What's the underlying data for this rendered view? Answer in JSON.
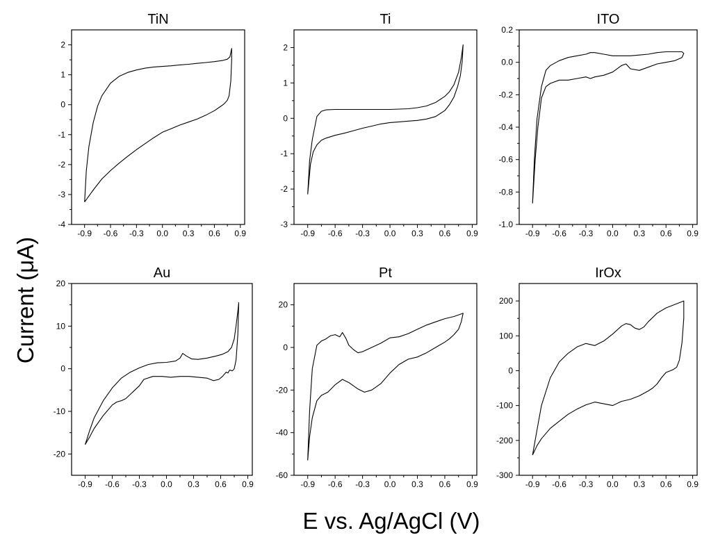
{
  "figure": {
    "ylabel": "Current (μA)",
    "xlabel": "E vs. Ag/AgCl (V)"
  },
  "chart_data": [
    {
      "type": "line",
      "title": "TiN",
      "xlim": [
        -1.05,
        0.95
      ],
      "ylim": [
        -4,
        2.5
      ],
      "xticks": [
        "-0.9",
        "-0.6",
        "-0.3",
        "0.0",
        "0.3",
        "0.6",
        "0.9"
      ],
      "yticks": [
        "-4",
        "-3",
        "-2",
        "-1",
        "0",
        "1",
        "2"
      ],
      "series": [
        {
          "x": [
            -0.9,
            -0.88,
            -0.85,
            -0.8,
            -0.75,
            -0.7,
            -0.6,
            -0.5,
            -0.4,
            -0.3,
            -0.2,
            -0.1,
            0.0,
            0.1,
            0.2,
            0.3,
            0.4,
            0.5,
            0.6,
            0.7,
            0.75,
            0.78,
            0.8,
            0.8,
            0.79,
            0.77,
            0.75,
            0.72,
            0.7,
            0.65,
            0.6,
            0.5,
            0.4,
            0.3,
            0.2,
            0.1,
            0.0,
            -0.1,
            -0.2,
            -0.3,
            -0.4,
            -0.5,
            -0.6,
            -0.7,
            -0.8,
            -0.85,
            -0.9
          ],
          "y": [
            -3.25,
            -2.2,
            -1.4,
            -0.6,
            -0.05,
            0.3,
            0.72,
            0.95,
            1.08,
            1.16,
            1.22,
            1.26,
            1.28,
            1.3,
            1.33,
            1.35,
            1.38,
            1.41,
            1.44,
            1.48,
            1.52,
            1.6,
            1.88,
            1.5,
            0.8,
            0.3,
            0.15,
            0.05,
            0.0,
            -0.1,
            -0.2,
            -0.35,
            -0.48,
            -0.58,
            -0.68,
            -0.8,
            -0.92,
            -1.1,
            -1.3,
            -1.5,
            -1.72,
            -1.95,
            -2.2,
            -2.48,
            -2.85,
            -3.05,
            -3.25
          ]
        }
      ]
    },
    {
      "type": "line",
      "title": "Ti",
      "xlim": [
        -1.05,
        0.95
      ],
      "ylim": [
        -3,
        2.5
      ],
      "xticks": [
        "-0.9",
        "-0.6",
        "-0.3",
        "0.0",
        "0.3",
        "0.6",
        "0.9"
      ],
      "yticks": [
        "-3",
        "-2",
        "-1",
        "0",
        "1",
        "2"
      ],
      "series": [
        {
          "x": [
            -0.9,
            -0.88,
            -0.85,
            -0.8,
            -0.75,
            -0.7,
            -0.6,
            -0.4,
            -0.2,
            0.0,
            0.2,
            0.3,
            0.4,
            0.5,
            0.6,
            0.65,
            0.7,
            0.75,
            0.78,
            0.8,
            0.79,
            0.77,
            0.74,
            0.7,
            0.65,
            0.6,
            0.5,
            0.4,
            0.3,
            0.2,
            0.1,
            0.0,
            -0.1,
            -0.2,
            -0.3,
            -0.4,
            -0.5,
            -0.6,
            -0.7,
            -0.75,
            -0.8,
            -0.84,
            -0.87,
            -0.9
          ],
          "y": [
            -2.15,
            -1.2,
            -0.6,
            0.05,
            0.2,
            0.24,
            0.25,
            0.25,
            0.25,
            0.25,
            0.27,
            0.3,
            0.35,
            0.45,
            0.62,
            0.75,
            0.95,
            1.3,
            1.7,
            2.08,
            1.6,
            1.2,
            0.9,
            0.6,
            0.38,
            0.22,
            0.05,
            -0.02,
            -0.06,
            -0.08,
            -0.1,
            -0.12,
            -0.16,
            -0.22,
            -0.28,
            -0.35,
            -0.42,
            -0.48,
            -0.56,
            -0.62,
            -0.75,
            -0.95,
            -1.3,
            -2.15
          ]
        }
      ]
    },
    {
      "type": "line",
      "title": "ITO",
      "xlim": [
        -1.05,
        0.95
      ],
      "ylim": [
        -1.0,
        0.2
      ],
      "xticks": [
        "-0.9",
        "-0.6",
        "-0.3",
        "0.0",
        "0.3",
        "0.6",
        "0.9"
      ],
      "yticks": [
        "-1.0",
        "-0.8",
        "-0.6",
        "-0.4",
        "-0.2",
        "0.0",
        "0.2"
      ],
      "series": [
        {
          "x": [
            -0.9,
            -0.88,
            -0.85,
            -0.8,
            -0.75,
            -0.7,
            -0.6,
            -0.5,
            -0.4,
            -0.3,
            -0.25,
            -0.2,
            -0.1,
            0.0,
            0.1,
            0.2,
            0.3,
            0.4,
            0.5,
            0.6,
            0.7,
            0.78,
            0.8,
            0.78,
            0.7,
            0.6,
            0.5,
            0.4,
            0.3,
            0.2,
            0.15,
            0.1,
            0.0,
            -0.1,
            -0.2,
            -0.25,
            -0.3,
            -0.4,
            -0.5,
            -0.6,
            -0.7,
            -0.75,
            -0.8,
            -0.84,
            -0.87,
            -0.9
          ],
          "y": [
            -0.87,
            -0.6,
            -0.35,
            -0.15,
            -0.05,
            -0.02,
            0.01,
            0.03,
            0.04,
            0.05,
            0.06,
            0.06,
            0.05,
            0.04,
            0.04,
            0.04,
            0.045,
            0.05,
            0.06,
            0.065,
            0.065,
            0.065,
            0.055,
            0.03,
            0.01,
            0.0,
            -0.01,
            -0.03,
            -0.05,
            -0.04,
            -0.01,
            -0.02,
            -0.06,
            -0.08,
            -0.09,
            -0.1,
            -0.09,
            -0.1,
            -0.11,
            -0.11,
            -0.13,
            -0.15,
            -0.22,
            -0.4,
            -0.6,
            -0.87
          ]
        }
      ]
    },
    {
      "type": "line",
      "title": "Au",
      "xlim": [
        -1.05,
        0.95
      ],
      "ylim": [
        -25,
        20
      ],
      "xticks": [
        "-0.9",
        "-0.6",
        "-0.3",
        "0.0",
        "0.3",
        "0.6",
        "0.9"
      ],
      "yticks": [
        "-20",
        "-10",
        "0",
        "10",
        "20"
      ],
      "series": [
        {
          "x": [
            -0.9,
            -0.85,
            -0.8,
            -0.7,
            -0.6,
            -0.5,
            -0.4,
            -0.3,
            -0.2,
            -0.1,
            0.0,
            0.1,
            0.15,
            0.18,
            0.22,
            0.28,
            0.35,
            0.45,
            0.55,
            0.62,
            0.68,
            0.72,
            0.75,
            0.77,
            0.79,
            0.8,
            0.79,
            0.77,
            0.75,
            0.73,
            0.7,
            0.68,
            0.66,
            0.62,
            0.58,
            0.52,
            0.45,
            0.35,
            0.25,
            0.15,
            0.05,
            -0.05,
            -0.15,
            -0.25,
            -0.3,
            -0.35,
            -0.4,
            -0.45,
            -0.5,
            -0.55,
            -0.6,
            -0.7,
            -0.8,
            -0.85,
            -0.9
          ],
          "y": [
            -17.8,
            -14.5,
            -11.5,
            -7.5,
            -4.5,
            -2.2,
            -0.8,
            0.2,
            1.0,
            1.4,
            1.5,
            1.8,
            2.5,
            3.6,
            3.0,
            2.3,
            2.2,
            2.5,
            3.0,
            3.4,
            4.0,
            5.0,
            7.0,
            10.0,
            13.5,
            15.5,
            8.0,
            2.0,
            0.0,
            -0.5,
            -0.3,
            -1.0,
            -0.8,
            -1.8,
            -2.5,
            -2.8,
            -2.2,
            -2.0,
            -1.8,
            -1.8,
            -2.0,
            -1.8,
            -1.8,
            -2.5,
            -4.0,
            -5.0,
            -6.0,
            -7.0,
            -7.5,
            -7.8,
            -8.5,
            -11.0,
            -14.0,
            -16.0,
            -17.8
          ]
        }
      ]
    },
    {
      "type": "line",
      "title": "Pt",
      "xlim": [
        -1.05,
        0.95
      ],
      "ylim": [
        -60,
        30
      ],
      "xticks": [
        "-0.9",
        "-0.6",
        "-0.3",
        "0.0",
        "0.3",
        "0.6",
        "0.9"
      ],
      "yticks": [
        "-60",
        "-40",
        "-20",
        "0",
        "20"
      ],
      "series": [
        {
          "x": [
            -0.9,
            -0.88,
            -0.85,
            -0.8,
            -0.75,
            -0.7,
            -0.65,
            -0.6,
            -0.55,
            -0.52,
            -0.48,
            -0.45,
            -0.4,
            -0.35,
            -0.3,
            -0.2,
            -0.1,
            0.0,
            0.1,
            0.2,
            0.3,
            0.4,
            0.5,
            0.6,
            0.7,
            0.8,
            0.78,
            0.75,
            0.7,
            0.65,
            0.6,
            0.5,
            0.4,
            0.3,
            0.2,
            0.1,
            0.0,
            -0.1,
            -0.2,
            -0.28,
            -0.35,
            -0.45,
            -0.52,
            -0.6,
            -0.68,
            -0.75,
            -0.8,
            -0.85,
            -0.88,
            -0.9
          ],
          "y": [
            -53.0,
            -30.0,
            -10.0,
            1.0,
            3.0,
            4.0,
            5.5,
            6.0,
            5.0,
            7.0,
            4.0,
            1.0,
            -1.0,
            -2.5,
            -2.0,
            0.0,
            2.0,
            4.5,
            5.0,
            6.5,
            8.5,
            10.5,
            12.0,
            13.5,
            14.5,
            16.0,
            12.0,
            8.5,
            6.0,
            4.0,
            2.5,
            0.0,
            -2.5,
            -4.5,
            -5.5,
            -8.0,
            -12.0,
            -17.0,
            -20.0,
            -21.0,
            -19.5,
            -16.5,
            -15.0,
            -17.5,
            -21.0,
            -22.5,
            -25.0,
            -33.0,
            -42.0,
            -53.0
          ]
        }
      ]
    },
    {
      "type": "line",
      "title": "IrOx",
      "xlim": [
        -1.05,
        0.95
      ],
      "ylim": [
        -300,
        250
      ],
      "xticks": [
        "-0.9",
        "-0.6",
        "-0.3",
        "0.0",
        "0.3",
        "0.6",
        "0.9"
      ],
      "yticks": [
        "-300",
        "-200",
        "-100",
        "0",
        "100",
        "200"
      ],
      "series": [
        {
          "x": [
            -0.9,
            -0.85,
            -0.8,
            -0.7,
            -0.6,
            -0.5,
            -0.4,
            -0.3,
            -0.2,
            -0.1,
            0.0,
            0.1,
            0.15,
            0.2,
            0.25,
            0.3,
            0.35,
            0.4,
            0.5,
            0.6,
            0.7,
            0.8,
            0.8,
            0.78,
            0.75,
            0.72,
            0.68,
            0.65,
            0.6,
            0.55,
            0.5,
            0.45,
            0.4,
            0.3,
            0.2,
            0.1,
            0.0,
            -0.1,
            -0.2,
            -0.3,
            -0.4,
            -0.5,
            -0.6,
            -0.7,
            -0.8,
            -0.85,
            -0.9
          ],
          "y": [
            -242,
            -170,
            -100,
            -20,
            25,
            50,
            68,
            78,
            72,
            85,
            105,
            128,
            135,
            132,
            122,
            118,
            125,
            140,
            165,
            180,
            190,
            200,
            150,
            80,
            30,
            10,
            3,
            0,
            -5,
            -20,
            -38,
            -50,
            -58,
            -72,
            -82,
            -88,
            -100,
            -95,
            -90,
            -98,
            -110,
            -125,
            -145,
            -165,
            -195,
            -215,
            -242
          ]
        }
      ]
    }
  ]
}
